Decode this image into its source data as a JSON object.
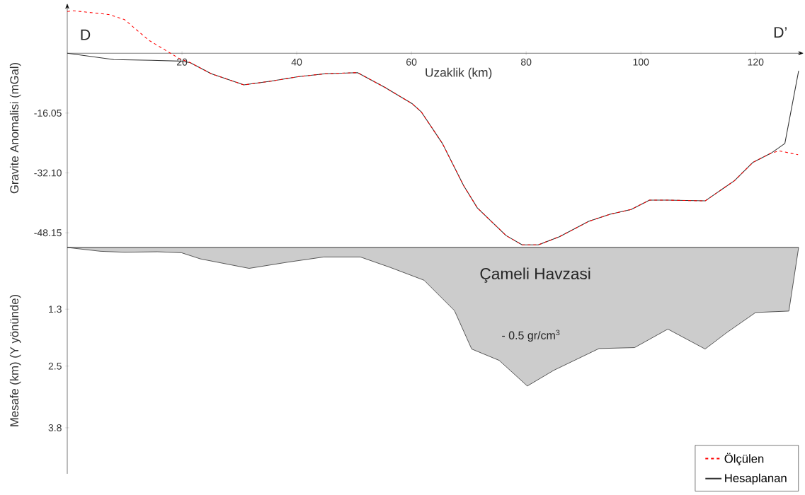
{
  "chart_data": [
    {
      "type": "line",
      "xlabel": "Uzaklik  (km)",
      "ylabel": "Gravite Anomalisi (mGal)",
      "xlim": [
        0,
        127.5
      ],
      "ylim": [
        -52.1,
        12
      ],
      "xticks": [
        20,
        40,
        60,
        80,
        100,
        120
      ],
      "yticks": [
        -16.05,
        {
          "value": -32.1,
          "label": "-32.10"
        },
        -48.15
      ],
      "legend": "bottom right",
      "grid": false,
      "annotations": [
        "D",
        "D’"
      ],
      "series": [
        {
          "name": "Ölçülen",
          "color": "#ff0000",
          "line_style": "dashed",
          "x": [
            0,
            1.0,
            7.2,
            10,
            14.2,
            19.5,
            21.4,
            25.1,
            30.8,
            35.5,
            40.2,
            45,
            50.6,
            55.3,
            60.1,
            61.7,
            65.4,
            69.1,
            71.5,
            76.5,
            79.3,
            82.1,
            85.8,
            90.9,
            94.6,
            98.3,
            101.5,
            104.7,
            111.2,
            116.3,
            119.5,
            122.7,
            124.1,
            127.4
          ],
          "values": [
            11.2,
            11.4,
            10.4,
            9.0,
            3.5,
            -1.4,
            -2.5,
            -5.5,
            -8.5,
            -7.5,
            -6.3,
            -5.5,
            -5.2,
            -9.1,
            -13.5,
            -15.7,
            -24.2,
            -35.5,
            -41.5,
            -48.9,
            -51.4,
            -51.4,
            -49.2,
            -45.1,
            -43.2,
            -41.9,
            -39.4,
            -39.4,
            -39.6,
            -34.2,
            -29.3,
            -26.8,
            -26.2,
            -27.2
          ]
        },
        {
          "name": "Hesaplanan",
          "color": "#333333",
          "line_style": "solid",
          "x": [
            0,
            8.1,
            14.7,
            19.5,
            21.4,
            25.1,
            30.8,
            35.5,
            40.2,
            45,
            50.6,
            55.3,
            60.1,
            61.7,
            65.4,
            69.1,
            71.5,
            76.5,
            79.3,
            82.1,
            85.8,
            90.9,
            94.6,
            98.3,
            101.5,
            104.7,
            111.2,
            116.3,
            119.5,
            122.7,
            125.1,
            127.5
          ],
          "values": [
            0,
            -1.7,
            -1.9,
            -2.1,
            -2.5,
            -5.5,
            -8.5,
            -7.5,
            -6.3,
            -5.5,
            -5.2,
            -9.1,
            -13.5,
            -15.7,
            -24.2,
            -35.5,
            -41.5,
            -48.9,
            -51.4,
            -51.4,
            -49.2,
            -45.1,
            -43.2,
            -41.9,
            -39.4,
            -39.4,
            -39.6,
            -34.2,
            -29.3,
            -26.8,
            -24.2,
            -4.7
          ]
        }
      ]
    },
    {
      "type": "area",
      "ylabel": "Mesafe (km) (Y yönünde)",
      "xlim": [
        0,
        127.5
      ],
      "ylim": [
        4.77,
        0
      ],
      "yticks": [
        1.3,
        2.5,
        3.8
      ],
      "tick_labels": "y",
      "annotations": [
        "Çameli Havzasi",
        "- 0.5  gr/cm$^{3}$"
      ],
      "series": [
        {
          "color": "#cccccc",
          "x": [
            0,
            5.8,
            10,
            15.7,
            19.9,
            23.2,
            31.7,
            38.4,
            44.7,
            51.1,
            56.3,
            62.2,
            67.5,
            70.5,
            75.3,
            80.2,
            84.8,
            92.7,
            98.9,
            104.7,
            111.2,
            114.9,
            120,
            125.8,
            127.5
          ],
          "values": [
            0,
            0.08,
            0.1,
            0.09,
            0.11,
            0.24,
            0.44,
            0.31,
            0.2,
            0.2,
            0.42,
            0.69,
            1.33,
            2.14,
            2.38,
            2.92,
            2.59,
            2.13,
            2.11,
            1.72,
            2.14,
            1.8,
            1.37,
            1.34,
            0
          ]
        }
      ]
    }
  ]
}
